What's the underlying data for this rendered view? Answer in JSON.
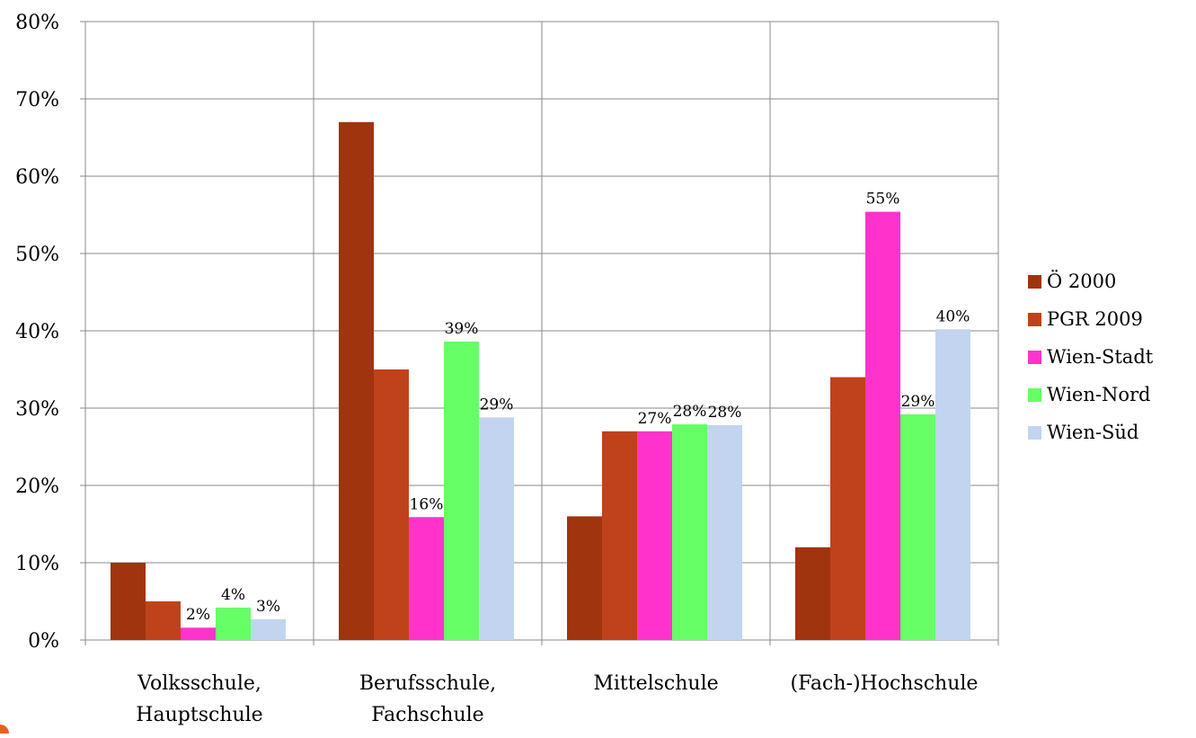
{
  "chart_data": {
    "type": "bar",
    "categories": [
      [
        "Volksschule,",
        "Hauptschule"
      ],
      [
        "Berufsschule,",
        "Fachschule"
      ],
      [
        "Mittelschule"
      ],
      [
        "(Fach-)Hochschule"
      ]
    ],
    "series": [
      {
        "name": "Ö 2000",
        "color": "#a0340f",
        "values": [
          10,
          67,
          16,
          12
        ],
        "labels": [
          "",
          "",
          "",
          ""
        ]
      },
      {
        "name": "PGR 2009",
        "color": "#c0421a",
        "values": [
          5,
          35,
          27,
          34
        ],
        "labels": [
          "",
          "",
          "",
          ""
        ]
      },
      {
        "name": "Wien-Stadt",
        "color": "#ff33cc",
        "values": [
          1.6,
          15.9,
          27,
          55.4
        ],
        "labels": [
          "2%",
          "16%",
          "27%",
          "55%"
        ]
      },
      {
        "name": "Wien-Nord",
        "color": "#66ff66",
        "values": [
          4.2,
          38.6,
          27.9,
          29.2
        ],
        "labels": [
          "4%",
          "39%",
          "28%",
          "29%"
        ]
      },
      {
        "name": "Wien-Süd",
        "color": "#c2d4f0",
        "values": [
          2.7,
          28.8,
          27.8,
          40.2
        ],
        "labels": [
          "3%",
          "29%",
          "28%",
          "40%"
        ]
      }
    ],
    "y_ticks": [
      "0%",
      "10%",
      "20%",
      "30%",
      "40%",
      "50%",
      "60%",
      "70%",
      "80%"
    ],
    "ylim": [
      0,
      80
    ],
    "grid": true,
    "legend_position": "right",
    "title": "",
    "xlabel": "",
    "ylabel": ""
  }
}
